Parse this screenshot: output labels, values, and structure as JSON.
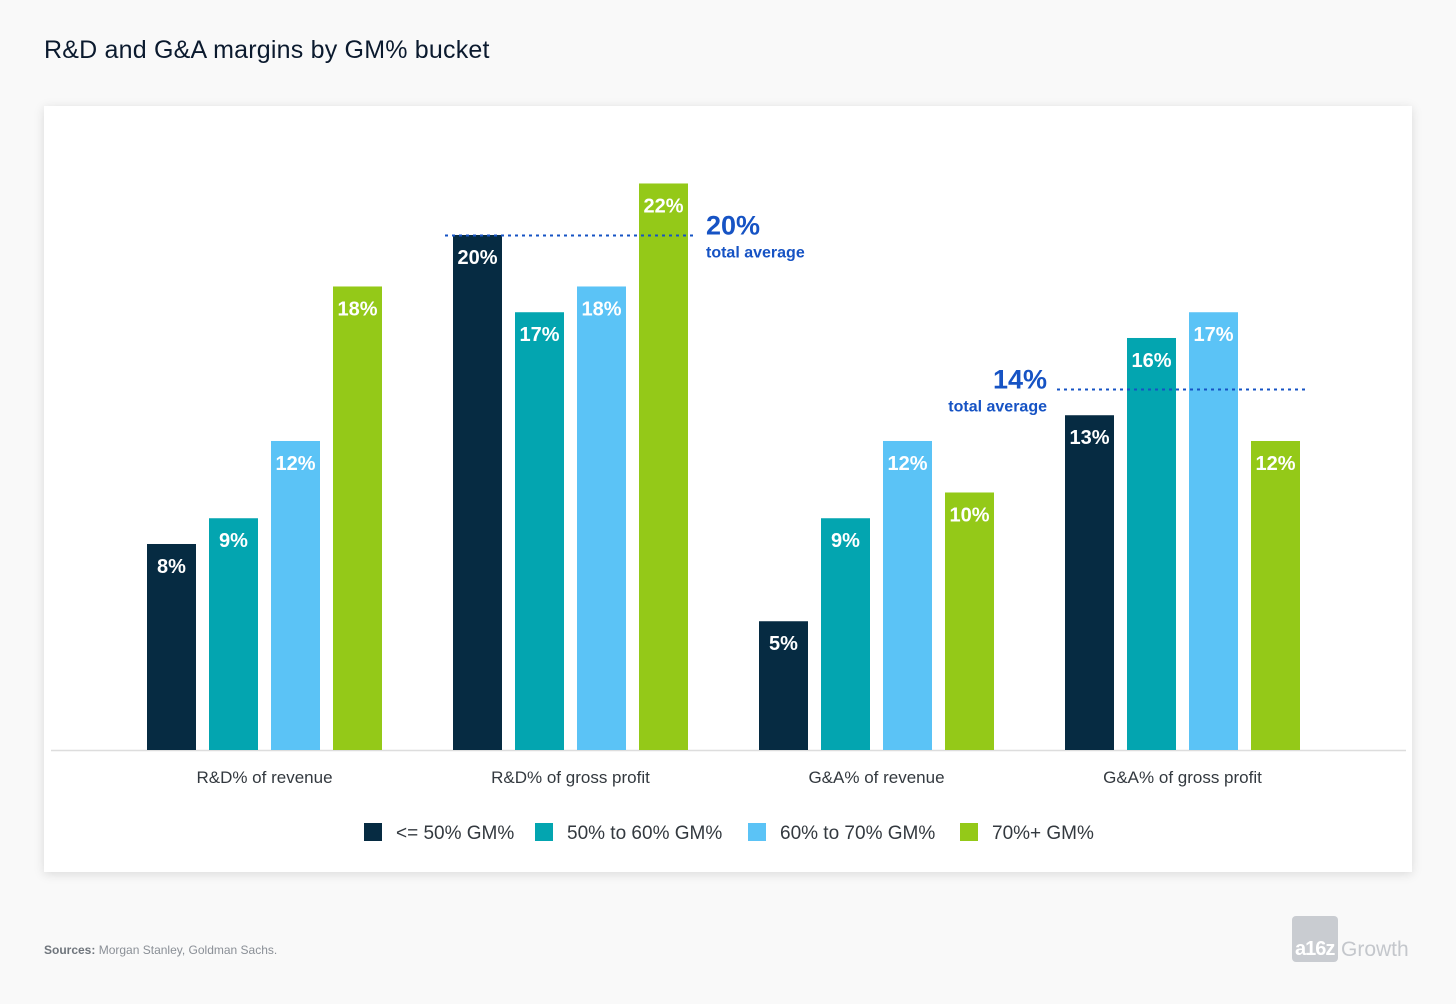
{
  "title": "R&D and G&A margins by GM% bucket",
  "sources": {
    "label": "Sources:",
    "text": "Morgan Stanley, Goldman Sachs."
  },
  "logo": {
    "mark": "a16z",
    "word": "Growth"
  },
  "colors": {
    "series": [
      "#062b42",
      "#03a5b0",
      "#5bc3f6",
      "#94c918"
    ],
    "label_on_dark": "#ffffff",
    "label_on_light": "#ffffff",
    "average": "#1653c4",
    "baseline": "#dddddd"
  },
  "chart_data": {
    "type": "bar",
    "categories": [
      "R&D% of revenue",
      "R&D% of gross profit",
      "G&A% of revenue",
      "G&A% of gross profit"
    ],
    "series": [
      {
        "name": "<= 50% GM%",
        "values": [
          8,
          20,
          5,
          13
        ]
      },
      {
        "name": "50% to 60% GM%",
        "values": [
          9,
          17,
          9,
          16
        ]
      },
      {
        "name": "60% to 70% GM%",
        "values": [
          12,
          18,
          12,
          17
        ]
      },
      {
        "name": "70%+ GM%",
        "values": [
          18,
          22,
          10,
          12
        ]
      }
    ],
    "value_suffix": "%",
    "ylim": [
      0,
      23.3
    ],
    "grid": false,
    "legend": "bottom",
    "annotations": [
      {
        "group": "R&D",
        "categories": [
          0,
          1
        ],
        "applies_to": "R&D% of gross profit",
        "value": 20,
        "label": "20%",
        "text": "total average",
        "side": "right"
      },
      {
        "group": "G&A",
        "categories": [
          2,
          3
        ],
        "applies_to": "G&A% of gross profit",
        "value": 14,
        "label": "14%",
        "text": "total average",
        "side": "left"
      }
    ]
  }
}
